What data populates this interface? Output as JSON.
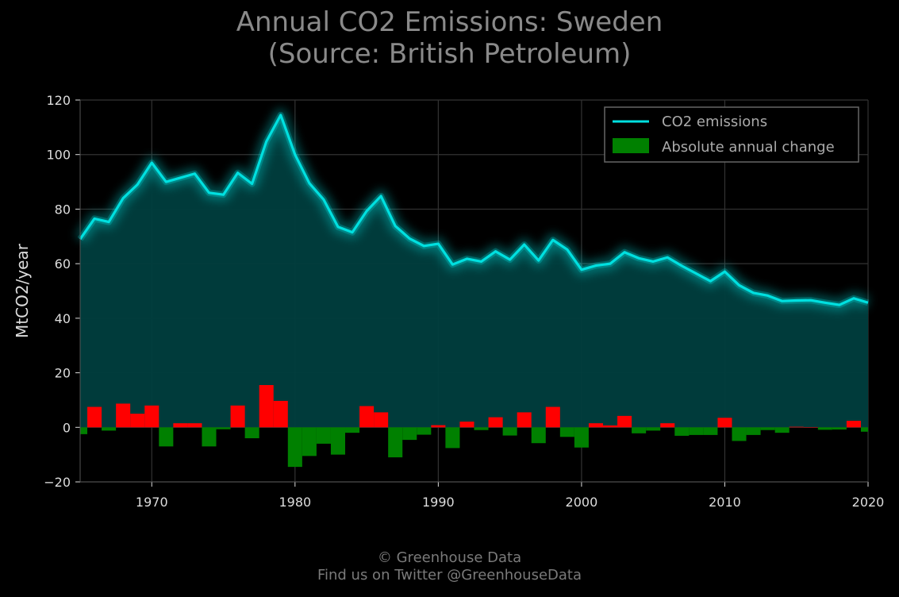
{
  "page": {
    "title_line1": "Annual CO2 Emissions: Sweden",
    "title_line2": "(Source: British Petroleum)",
    "footer_line1": "© Greenhouse Data",
    "footer_line2": "Find us on Twitter @GreenhouseData"
  },
  "colors": {
    "background": "#000000",
    "emissions_line": "#00e0e0",
    "area_fill": "#003e3e",
    "increase": "#ff0000",
    "decrease": "#008000",
    "grid": "#333333",
    "title": "#8a8a8a"
  },
  "chart_data": {
    "type": "line",
    "title": "Annual CO2 Emissions: Sweden\n(Source: British Petroleum)",
    "xlabel": "",
    "ylabel": "MtCO2/year",
    "xlim": [
      1965,
      2020
    ],
    "ylim": [
      -20,
      120
    ],
    "xticks": [
      1970,
      1980,
      1990,
      2000,
      2010,
      2020
    ],
    "yticks": [
      -20,
      0,
      20,
      40,
      60,
      80,
      100,
      120
    ],
    "ytick_labels": [
      "−20",
      "0",
      "20",
      "40",
      "60",
      "80",
      "100",
      "120"
    ],
    "grid": true,
    "legend_position": "top-right",
    "x": [
      1965,
      1966,
      1967,
      1968,
      1969,
      1970,
      1971,
      1972,
      1973,
      1974,
      1975,
      1976,
      1977,
      1978,
      1979,
      1980,
      1981,
      1982,
      1983,
      1984,
      1985,
      1986,
      1987,
      1988,
      1989,
      1990,
      1991,
      1992,
      1993,
      1994,
      1995,
      1996,
      1997,
      1998,
      1999,
      2000,
      2001,
      2002,
      2003,
      2004,
      2005,
      2006,
      2007,
      2008,
      2009,
      2010,
      2011,
      2012,
      2013,
      2014,
      2015,
      2016,
      2017,
      2018,
      2019,
      2020
    ],
    "series": [
      {
        "name": "CO2 emissions",
        "type": "line",
        "values": [
          69,
          76.5,
          75.3,
          84,
          89,
          97,
          90,
          91.5,
          93,
          86,
          85.3,
          93.3,
          89.3,
          104.8,
          114.5,
          100,
          89.5,
          83.5,
          73.5,
          71.5,
          79.3,
          84.8,
          73.8,
          69.2,
          66.5,
          67.3,
          59.7,
          61.8,
          60.8,
          64.5,
          61.5,
          67,
          61.2,
          68.7,
          65.2,
          57.8,
          59.3,
          60,
          64.2,
          62,
          60.8,
          62.3,
          59.2,
          56.4,
          53.6,
          57.1,
          52.1,
          49.3,
          48.3,
          46.3,
          46.5,
          46.6,
          45.7,
          44.9,
          47.3,
          45.7
        ]
      },
      {
        "name": "Absolute annual change",
        "type": "bar",
        "values": [
          -2.5,
          7.5,
          -1.2,
          8.7,
          5,
          8,
          -7,
          1.5,
          1.5,
          -7,
          -0.7,
          8,
          -4,
          15.5,
          9.7,
          -14.5,
          -10.5,
          -6,
          -10,
          -2,
          7.8,
          5.5,
          -11,
          -4.6,
          -2.7,
          0.8,
          -7.6,
          2.1,
          -1,
          3.7,
          -3,
          5.5,
          -5.8,
          7.5,
          -3.5,
          -7.4,
          1.5,
          0.7,
          4.2,
          -2.2,
          -1.2,
          1.5,
          -3.1,
          -2.8,
          -2.8,
          3.5,
          -5,
          -2.8,
          -1,
          -2,
          0.2,
          0.1,
          -0.9,
          -0.8,
          2.4,
          -1.6
        ]
      }
    ]
  }
}
